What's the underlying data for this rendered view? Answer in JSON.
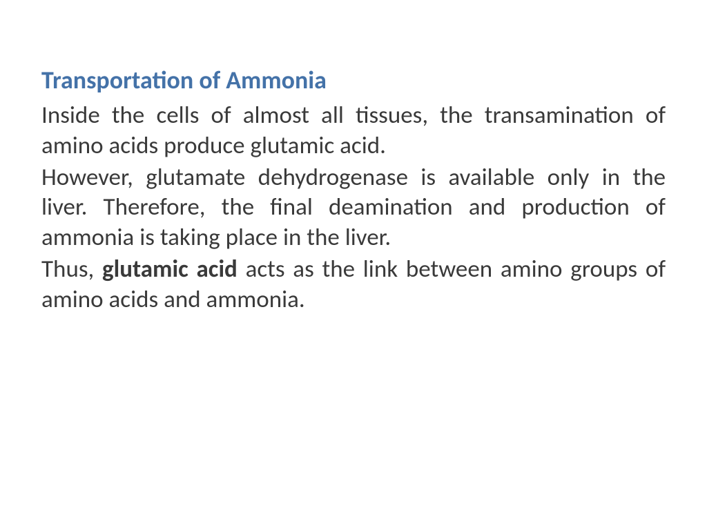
{
  "slide": {
    "title": "Transportation of Ammonia",
    "title_color": "#4472a8",
    "title_fontsize": 36,
    "title_fontweight": "bold",
    "body_color": "#3a3a3a",
    "body_fontsize": 35,
    "background_color": "#ffffff",
    "paragraphs": [
      {
        "text_before": "Inside the cells of almost all tissues, the transamination of amino acids produce glutamic acid.",
        "bold_text": "",
        "text_after": ""
      },
      {
        "text_before": " However, glutamate dehydrogenase is available only in the liver. Therefore, the final deamination and production of ammonia is taking place in the liver.",
        "bold_text": "",
        "text_after": ""
      },
      {
        "text_before": " Thus, ",
        "bold_text": "glutamic acid",
        "text_after": " acts as the link between amino groups of amino acids and ammonia."
      }
    ]
  }
}
